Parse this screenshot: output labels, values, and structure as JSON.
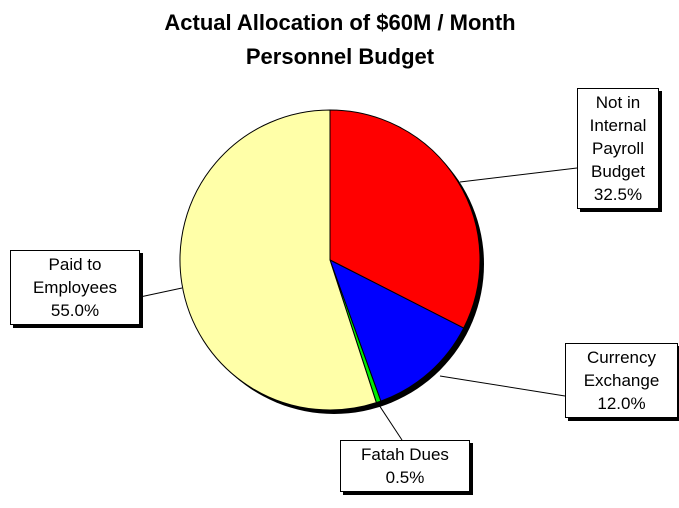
{
  "chart_data": {
    "type": "pie",
    "title": "Actual Allocation of $60M / Month Personnel Budget",
    "categories": [
      "Not in Internal Payroll Budget",
      "Currency Exchange",
      "Fatah Dues",
      "Paid to Employees"
    ],
    "values": [
      32.5,
      12.0,
      0.5,
      55.0
    ],
    "value_labels": [
      "32.5%",
      "12.0%",
      "0.5%",
      "55.0%"
    ],
    "colors": [
      "#ff0000",
      "#0000ff",
      "#00ee00",
      "#ffffa8"
    ]
  }
}
